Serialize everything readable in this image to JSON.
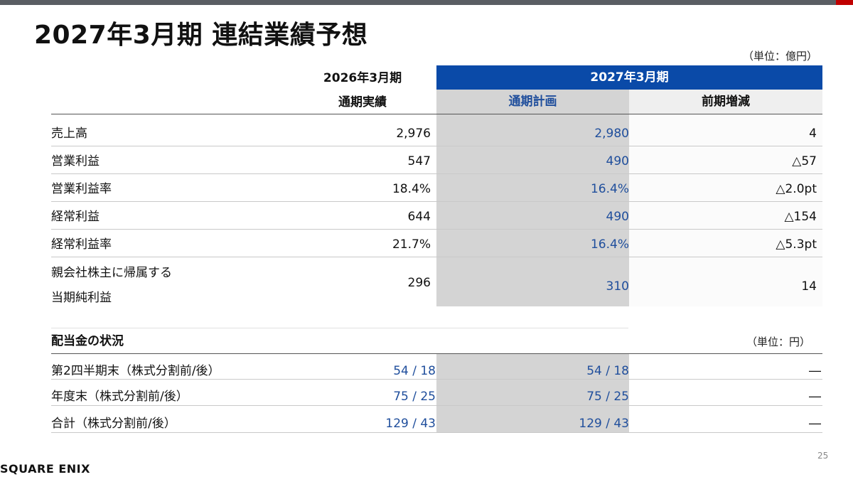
{
  "page": {
    "title": "2027年3月期 連結業績予想",
    "unit_forecast": "（単位：億円）",
    "unit_dividend": "（単位：円）",
    "page_number": "25",
    "logo": "SQUARE ENIX"
  },
  "header": {
    "prev_year": "2026年3月期",
    "prev_sub": "通期実績",
    "next_year": "2027年3月期",
    "plan": "通期計画",
    "change": "前期増減"
  },
  "rows": [
    {
      "label": "売上高",
      "actual": "2,976",
      "plan": "2,980",
      "change": "4"
    },
    {
      "label": "営業利益",
      "actual": "547",
      "plan": "490",
      "change": "△57"
    },
    {
      "label": "営業利益率",
      "actual": "18.4%",
      "plan": "16.4%",
      "change": "△2.0pt"
    },
    {
      "label": "経常利益",
      "actual": "644",
      "plan": "490",
      "change": "△154"
    },
    {
      "label": "経常利益率",
      "actual": "21.7%",
      "plan": "16.4%",
      "change": "△5.3pt"
    },
    {
      "label_line1": "親会社株主に帰属する",
      "label_line2": "当期純利益",
      "actual": "296",
      "plan": "310",
      "change": "14"
    }
  ],
  "dividend": {
    "heading": "配当金の状況",
    "rows": [
      {
        "label": "第2四半期末（株式分割前/後）",
        "actual": "54 / 18",
        "plan": "54 / 18",
        "change": "―"
      },
      {
        "label": "年度末（株式分割前/後）",
        "actual": "75 / 25",
        "plan": "75 / 25",
        "change": "―"
      },
      {
        "label": "合計（株式分割前/後）",
        "actual": "129 / 43",
        "plan": "129 / 43",
        "change": "―"
      }
    ]
  }
}
